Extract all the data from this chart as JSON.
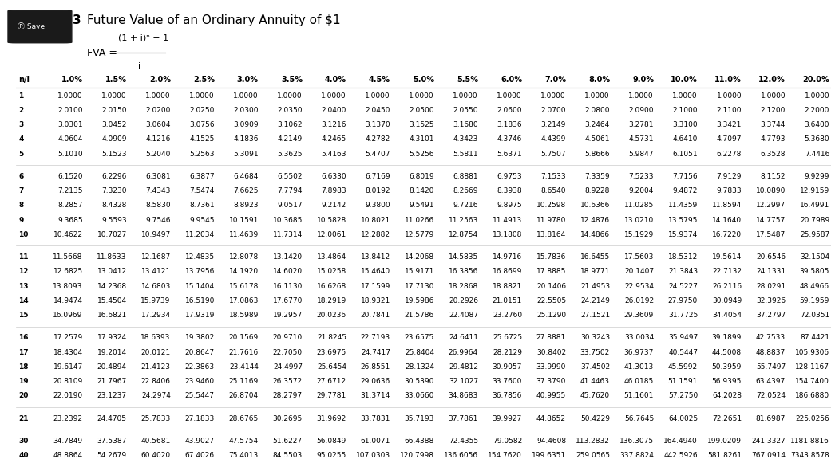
{
  "title_main": "Future Value of an Ordinary Annuity of $1",
  "title_prefix": "3",
  "columns": [
    "n/i",
    "1.0%",
    "1.5%",
    "2.0%",
    "2.5%",
    "3.0%",
    "3.5%",
    "4.0%",
    "4.5%",
    "5.0%",
    "5.5%",
    "6.0%",
    "7.0%",
    "8.0%",
    "9.0%",
    "10.0%",
    "11.0%",
    "12.0%",
    "20.0%"
  ],
  "rows": [
    [
      1,
      1.0,
      1.0,
      1.0,
      1.0,
      1.0,
      1.0,
      1.0,
      1.0,
      1.0,
      1.0,
      1.0,
      1.0,
      1.0,
      1.0,
      1.0,
      1.0,
      1.0,
      1.0
    ],
    [
      2,
      2.01,
      2.015,
      2.02,
      2.025,
      2.03,
      2.035,
      2.04,
      2.045,
      2.05,
      2.055,
      2.06,
      2.07,
      2.08,
      2.09,
      2.1,
      2.11,
      2.12,
      2.2
    ],
    [
      3,
      3.0301,
      3.0452,
      3.0604,
      3.0756,
      3.0909,
      3.1062,
      3.1216,
      3.137,
      3.1525,
      3.168,
      3.1836,
      3.2149,
      3.2464,
      3.2781,
      3.31,
      3.3421,
      3.3744,
      3.64
    ],
    [
      4,
      4.0604,
      4.0909,
      4.1216,
      4.1525,
      4.1836,
      4.2149,
      4.2465,
      4.2782,
      4.3101,
      4.3423,
      4.3746,
      4.4399,
      4.5061,
      4.5731,
      4.641,
      4.7097,
      4.7793,
      5.368
    ],
    [
      5,
      5.101,
      5.1523,
      5.204,
      5.2563,
      5.3091,
      5.3625,
      5.4163,
      5.4707,
      5.5256,
      5.5811,
      5.6371,
      5.7507,
      5.8666,
      5.9847,
      6.1051,
      6.2278,
      6.3528,
      7.4416
    ],
    [
      6,
      6.152,
      6.2296,
      6.3081,
      6.3877,
      6.4684,
      6.5502,
      6.633,
      6.7169,
      6.8019,
      6.8881,
      6.9753,
      7.1533,
      7.3359,
      7.5233,
      7.7156,
      7.9129,
      8.1152,
      9.9299
    ],
    [
      7,
      7.2135,
      7.323,
      7.4343,
      7.5474,
      7.6625,
      7.7794,
      7.8983,
      8.0192,
      8.142,
      8.2669,
      8.3938,
      8.654,
      8.9228,
      9.2004,
      9.4872,
      9.7833,
      10.089,
      12.9159
    ],
    [
      8,
      8.2857,
      8.4328,
      8.583,
      8.7361,
      8.8923,
      9.0517,
      9.2142,
      9.38,
      9.5491,
      9.7216,
      9.8975,
      10.2598,
      10.6366,
      11.0285,
      11.4359,
      11.8594,
      12.2997,
      16.4991
    ],
    [
      9,
      9.3685,
      9.5593,
      9.7546,
      9.9545,
      10.1591,
      10.3685,
      10.5828,
      10.8021,
      11.0266,
      11.2563,
      11.4913,
      11.978,
      12.4876,
      13.021,
      13.5795,
      14.164,
      14.7757,
      20.7989
    ],
    [
      10,
      10.4622,
      10.7027,
      10.9497,
      11.2034,
      11.4639,
      11.7314,
      12.0061,
      12.2882,
      12.5779,
      12.8754,
      13.1808,
      13.8164,
      14.4866,
      15.1929,
      15.9374,
      16.722,
      17.5487,
      25.9587
    ],
    [
      11,
      11.5668,
      11.8633,
      12.1687,
      12.4835,
      12.8078,
      13.142,
      13.4864,
      13.8412,
      14.2068,
      14.5835,
      14.9716,
      15.7836,
      16.6455,
      17.5603,
      18.5312,
      19.5614,
      20.6546,
      32.1504
    ],
    [
      12,
      12.6825,
      13.0412,
      13.4121,
      13.7956,
      14.192,
      14.602,
      15.0258,
      15.464,
      15.9171,
      16.3856,
      16.8699,
      17.8885,
      18.9771,
      20.1407,
      21.3843,
      22.7132,
      24.1331,
      39.5805
    ],
    [
      13,
      13.8093,
      14.2368,
      14.6803,
      15.1404,
      15.6178,
      16.113,
      16.6268,
      17.1599,
      17.713,
      18.2868,
      18.8821,
      20.1406,
      21.4953,
      22.9534,
      24.5227,
      26.2116,
      28.0291,
      48.4966
    ],
    [
      14,
      14.9474,
      15.4504,
      15.9739,
      16.519,
      17.0863,
      17.677,
      18.2919,
      18.9321,
      19.5986,
      20.2926,
      21.0151,
      22.5505,
      24.2149,
      26.0192,
      27.975,
      30.0949,
      32.3926,
      59.1959
    ],
    [
      15,
      16.0969,
      16.6821,
      17.2934,
      17.9319,
      18.5989,
      19.2957,
      20.0236,
      20.7841,
      21.5786,
      22.4087,
      23.276,
      25.129,
      27.1521,
      29.3609,
      31.7725,
      34.4054,
      37.2797,
      72.0351
    ],
    [
      16,
      17.2579,
      17.9324,
      18.6393,
      19.3802,
      20.1569,
      20.971,
      21.8245,
      22.7193,
      23.6575,
      24.6411,
      25.6725,
      27.8881,
      30.3243,
      33.0034,
      35.9497,
      39.1899,
      42.7533,
      87.4421
    ],
    [
      17,
      18.4304,
      19.2014,
      20.0121,
      20.8647,
      21.7616,
      22.705,
      23.6975,
      24.7417,
      25.8404,
      26.9964,
      28.2129,
      30.8402,
      33.7502,
      36.9737,
      40.5447,
      44.5008,
      48.8837,
      105.9306
    ],
    [
      18,
      19.6147,
      20.4894,
      21.4123,
      22.3863,
      23.4144,
      24.4997,
      25.6454,
      26.8551,
      28.1324,
      29.4812,
      30.9057,
      33.999,
      37.4502,
      41.3013,
      45.5992,
      50.3959,
      55.7497,
      128.1167
    ],
    [
      19,
      20.8109,
      21.7967,
      22.8406,
      23.946,
      25.1169,
      26.3572,
      27.6712,
      29.0636,
      30.539,
      32.1027,
      33.76,
      37.379,
      41.4463,
      46.0185,
      51.1591,
      56.9395,
      63.4397,
      154.74
    ],
    [
      20,
      22.019,
      23.1237,
      24.2974,
      25.5447,
      26.8704,
      28.2797,
      29.7781,
      31.3714,
      33.066,
      34.8683,
      36.7856,
      40.9955,
      45.762,
      51.1601,
      57.275,
      64.2028,
      72.0524,
      186.688
    ],
    [
      21,
      23.2392,
      24.4705,
      25.7833,
      27.1833,
      28.6765,
      30.2695,
      31.9692,
      33.7831,
      35.7193,
      37.7861,
      39.9927,
      44.8652,
      50.4229,
      56.7645,
      64.0025,
      72.2651,
      81.6987,
      225.0256
    ],
    [
      30,
      34.7849,
      37.5387,
      40.5681,
      43.9027,
      47.5754,
      51.6227,
      56.0849,
      61.0071,
      66.4388,
      72.4355,
      79.0582,
      94.4608,
      113.2832,
      136.3075,
      164.494,
      199.0209,
      241.3327,
      1181.8816
    ],
    [
      40,
      48.8864,
      54.2679,
      60.402,
      67.4026,
      75.4013,
      84.5503,
      95.0255,
      107.0303,
      120.7998,
      136.6056,
      154.762,
      199.6351,
      259.0565,
      337.8824,
      442.5926,
      581.8261,
      767.0914,
      7343.8578
    ]
  ],
  "bg_color": "#ffffff",
  "text_color": "#000000",
  "font_size": 6.5,
  "header_font_size": 7.0,
  "title_font_size": 11.0,
  "break_after_indices": [
    4,
    9,
    14,
    19,
    20
  ]
}
